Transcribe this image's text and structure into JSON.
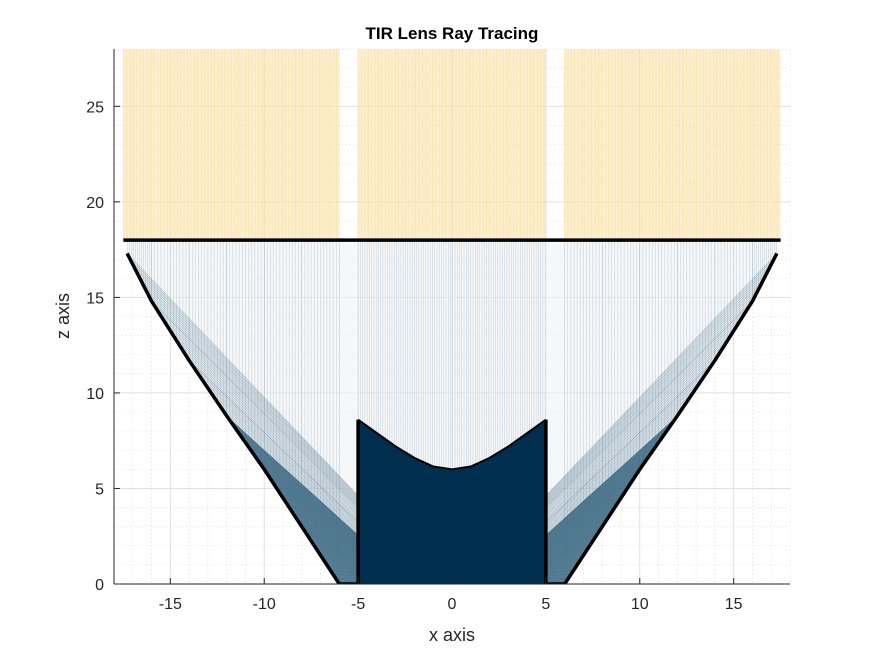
{
  "chart_data": {
    "type": "line",
    "title": "TIR Lens Ray Tracing",
    "xlabel": "x axis",
    "ylabel": "z axis",
    "xlim": [
      -18,
      18
    ],
    "ylim": [
      0,
      28
    ],
    "xticks": [
      -15,
      -10,
      -5,
      0,
      5,
      10,
      15
    ],
    "yticks": [
      0,
      5,
      10,
      15,
      20,
      25
    ],
    "xtick_labels": [
      "-15",
      "-10",
      "-5",
      "0",
      "5",
      "10",
      "15"
    ],
    "ytick_labels": [
      "0",
      "5",
      "10",
      "15",
      "20",
      "25"
    ],
    "grid": "on (major and minor)",
    "lens_outline": {
      "top_surface_z": 18.0,
      "top_surface_x": [
        -17.5,
        17.5
      ],
      "outer_tir_curve_right": [
        [
          6.0,
          0.0
        ],
        [
          8.0,
          3.0
        ],
        [
          10.0,
          6.0
        ],
        [
          12.0,
          8.8
        ],
        [
          14.0,
          11.7
        ],
        [
          16.0,
          14.8
        ],
        [
          17.3,
          17.3
        ]
      ],
      "outer_tir_curve_left": [
        [
          -6.0,
          0.0
        ],
        [
          -8.0,
          3.0
        ],
        [
          -10.0,
          6.0
        ],
        [
          -12.0,
          8.8
        ],
        [
          -14.0,
          11.7
        ],
        [
          -16.0,
          14.8
        ],
        [
          -17.3,
          17.3
        ]
      ],
      "base_ledges": [
        [
          -6.0,
          -5.0
        ],
        [
          5.0,
          6.0
        ]
      ],
      "inner_cavity_walls_x": [
        -5.0,
        5.0
      ],
      "inner_cavity_wall_top_z": 8.6,
      "central_lens_surface": [
        [
          -5.0,
          8.6
        ],
        [
          -4.0,
          7.9
        ],
        [
          -3.0,
          7.2
        ],
        [
          -2.0,
          6.6
        ],
        [
          -1.0,
          6.15
        ],
        [
          0.0,
          6.0
        ],
        [
          1.0,
          6.15
        ],
        [
          2.0,
          6.6
        ],
        [
          3.0,
          7.2
        ],
        [
          4.0,
          7.9
        ],
        [
          5.0,
          8.6
        ]
      ]
    },
    "output_ray_bands_x": [
      [
        -17.5,
        -6.0
      ],
      [
        -5.0,
        5.0
      ],
      [
        6.0,
        17.5
      ]
    ],
    "colors": {
      "outline": "#000000",
      "output_rays": "#fbe2a6",
      "internal_rays": "#1f4e6b",
      "source_region": "#002e4e",
      "grid": "#e0e0e0"
    }
  }
}
